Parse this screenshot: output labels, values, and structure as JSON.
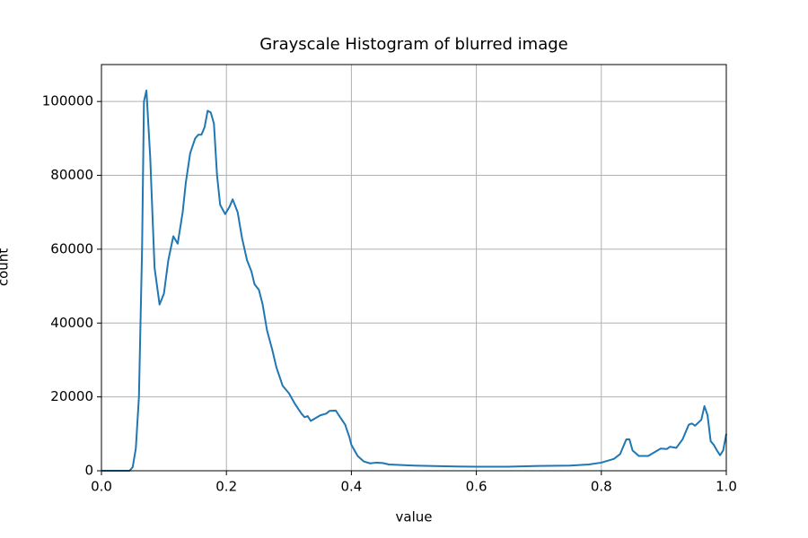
{
  "chart_data": {
    "type": "line",
    "title": "Grayscale Histogram of blurred image",
    "xlabel": "value",
    "ylabel": "count",
    "xlim": [
      0,
      1
    ],
    "ylim": [
      0,
      110000
    ],
    "xticks": [
      {
        "value": 0,
        "label": "0.0"
      },
      0.2,
      0.4,
      0.6,
      0.8,
      {
        "value": 1,
        "label": "1.0"
      }
    ],
    "yticks": [
      0,
      20000,
      40000,
      60000,
      80000,
      100000
    ],
    "grid": true,
    "series": [
      {
        "color": "#1f77b4",
        "x": [
          0,
          0.045,
          0.05,
          0.055,
          0.06,
          0.065,
          0.068,
          0.072,
          0.078,
          0.085,
          0.093,
          0.1,
          0.107,
          0.115,
          0.122,
          0.13,
          0.135,
          0.142,
          0.15,
          0.155,
          0.16,
          0.165,
          0.17,
          0.175,
          0.18,
          0.185,
          0.19,
          0.198,
          0.205,
          0.21,
          0.218,
          0.225,
          0.233,
          0.24,
          0.245,
          0.252,
          0.258,
          0.265,
          0.273,
          0.28,
          0.29,
          0.3,
          0.31,
          0.32,
          0.325,
          0.33,
          0.335,
          0.34,
          0.35,
          0.36,
          0.365,
          0.375,
          0.38,
          0.39,
          0.397,
          0.4,
          0.41,
          0.42,
          0.43,
          0.44,
          0.45,
          0.46,
          0.5,
          0.55,
          0.6,
          0.65,
          0.7,
          0.75,
          0.78,
          0.8,
          0.82,
          0.83,
          0.835,
          0.84,
          0.845,
          0.85,
          0.86,
          0.875,
          0.885,
          0.895,
          0.905,
          0.91,
          0.92,
          0.93,
          0.94,
          0.945,
          0.95,
          0.96,
          0.965,
          0.97,
          0.975,
          0.98,
          0.985,
          0.99,
          0.995,
          1.0
        ],
        "values": [
          0,
          0,
          1000,
          6000,
          20000,
          60000,
          100000,
          103000,
          85000,
          55000,
          45000,
          48000,
          57000,
          63500,
          61500,
          70000,
          78000,
          86000,
          90000,
          91000,
          91000,
          93000,
          97500,
          97000,
          94000,
          80000,
          72000,
          69500,
          71500,
          73500,
          70000,
          63000,
          57000,
          54000,
          50500,
          49000,
          45000,
          38000,
          33000,
          28000,
          23000,
          21000,
          18000,
          15500,
          14500,
          14800,
          13500,
          14000,
          15000,
          15500,
          16200,
          16300,
          15000,
          12500,
          9000,
          7000,
          4000,
          2500,
          2000,
          2200,
          2100,
          1700,
          1400,
          1200,
          1100,
          1100,
          1300,
          1400,
          1700,
          2200,
          3200,
          4500,
          6500,
          8500,
          8500,
          5500,
          4000,
          4000,
          5000,
          6000,
          5900,
          6500,
          6200,
          8500,
          12500,
          12800,
          12200,
          13800,
          17500,
          15000,
          8000,
          7000,
          5500,
          4200,
          5500,
          10000
        ]
      }
    ]
  }
}
